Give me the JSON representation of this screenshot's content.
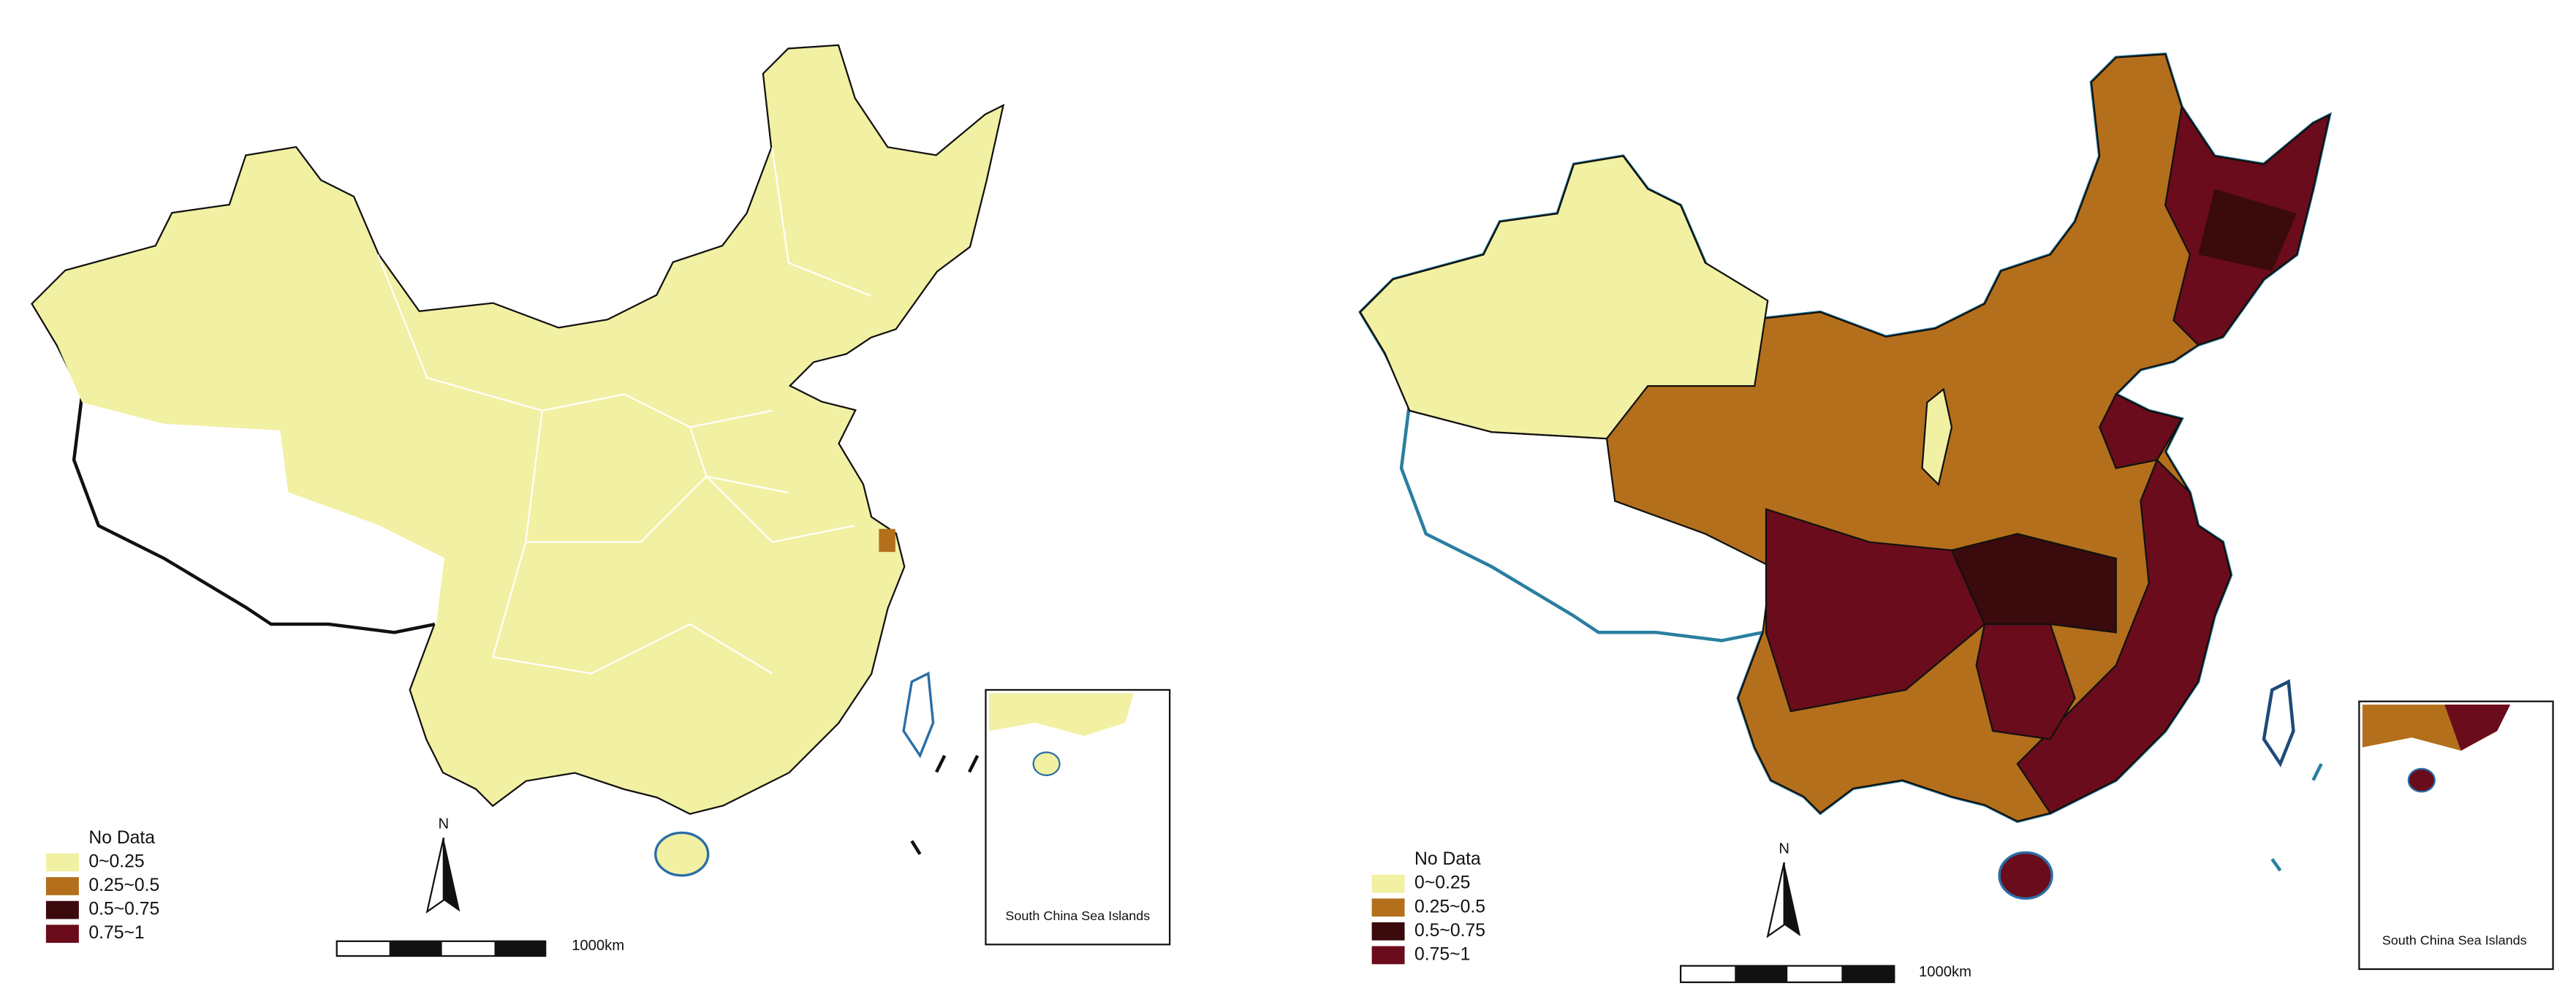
{
  "maps": [
    {
      "legend": [
        {
          "label": "No Data",
          "color": "#ffffff"
        },
        {
          "label": "0~0.25",
          "color": "#f2f0a2"
        },
        {
          "label": "0.25~0.5",
          "color": "#b36f1c"
        },
        {
          "label": "0.5~0.75",
          "color": "#3b0a0c"
        },
        {
          "label": "0.75~1",
          "color": "#6a0c1b"
        }
      ],
      "north": "N",
      "scale_label": "1000km",
      "inset_label": "South China Sea Islands"
    },
    {
      "legend": [
        {
          "label": "No Data",
          "color": "#ffffff"
        },
        {
          "label": "0~0.25",
          "color": "#f2f0a2"
        },
        {
          "label": "0.25~0.5",
          "color": "#b36f1c"
        },
        {
          "label": "0.5~0.75",
          "color": "#3b0a0c"
        },
        {
          "label": "0.75~1",
          "color": "#6a0c1b"
        }
      ],
      "north": "N",
      "scale_label": "1000km",
      "inset_label": "South China Sea Islands"
    }
  ]
}
